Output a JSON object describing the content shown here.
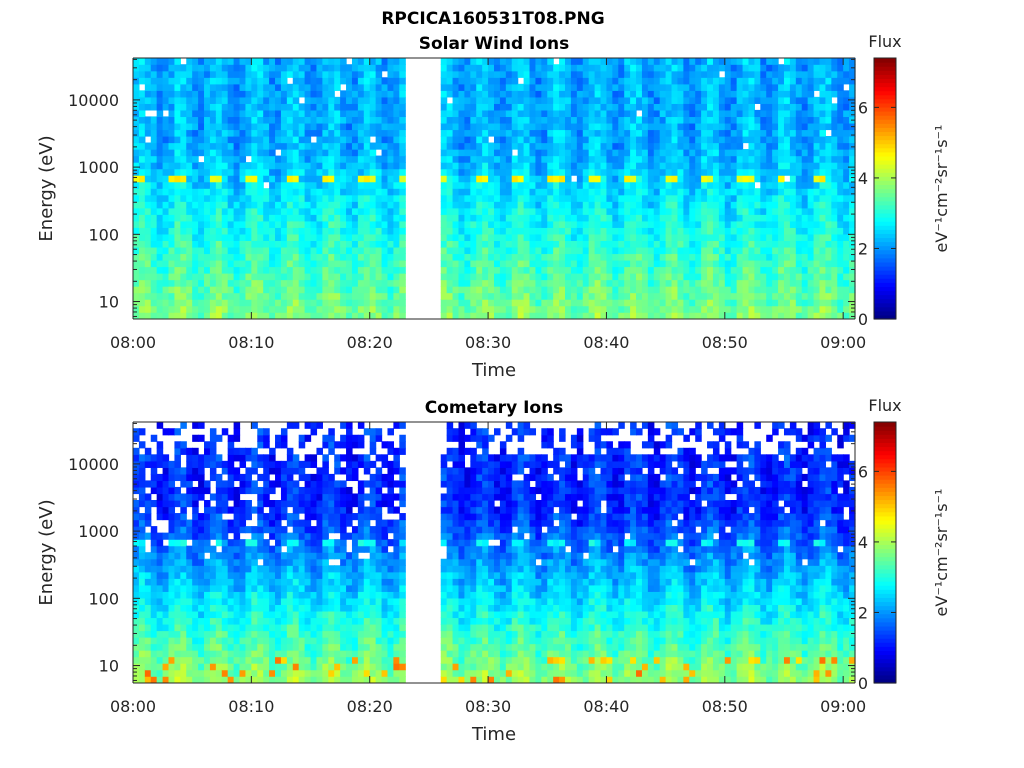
{
  "figure_title": "RPCICA160531T08.PNG",
  "chart_data": [
    {
      "type": "heatmap",
      "title": "Solar Wind Ions",
      "xlabel": "Time",
      "ylabel": "Energy (eV)",
      "x_ticks": [
        "08:00",
        "08:10",
        "08:20",
        "08:30",
        "08:40",
        "08:50",
        "09:00"
      ],
      "x_range_minutes": [
        0,
        61
      ],
      "y_scale": "log",
      "y_ticks": [
        "10",
        "100",
        "1000",
        "10000"
      ],
      "y_range": [
        5.5,
        42000
      ],
      "data_gap_minutes": [
        23,
        26
      ],
      "colorbar": {
        "title": "Flux",
        "label": "eV⁻¹cm⁻²sr⁻¹s⁻¹",
        "range": [
          0,
          7.4
        ],
        "ticks": [
          "0",
          "2",
          "4",
          "6"
        ],
        "colormap": "jet"
      },
      "features": {
        "background_level": 2.2,
        "low_energy_level": 3.7,
        "beam_energy_eV": 650,
        "beam_level": 4.6,
        "sweep_period_minutes": 3.2,
        "white_speckle_density": "low"
      }
    },
    {
      "type": "heatmap",
      "title": "Cometary Ions",
      "xlabel": "Time",
      "ylabel": "Energy (eV)",
      "x_ticks": [
        "08:00",
        "08:10",
        "08:20",
        "08:30",
        "08:40",
        "08:50",
        "09:00"
      ],
      "x_range_minutes": [
        0,
        61
      ],
      "y_scale": "log",
      "y_ticks": [
        "10",
        "100",
        "1000",
        "10000"
      ],
      "y_range": [
        5.5,
        42000
      ],
      "data_gap_minutes": [
        23,
        26
      ],
      "colorbar": {
        "title": "Flux",
        "label": "eV⁻¹cm⁻²sr⁻¹s⁻¹",
        "range": [
          0,
          7.4
        ],
        "ticks": [
          "0",
          "2",
          "4",
          "6"
        ],
        "colormap": "jet"
      },
      "features": {
        "background_level": 1.2,
        "low_energy_level": 3.9,
        "beam_energy_eV": 650,
        "beam_level": 2.8,
        "sweep_period_minutes": 3.2,
        "white_speckle_density": "high"
      }
    }
  ]
}
